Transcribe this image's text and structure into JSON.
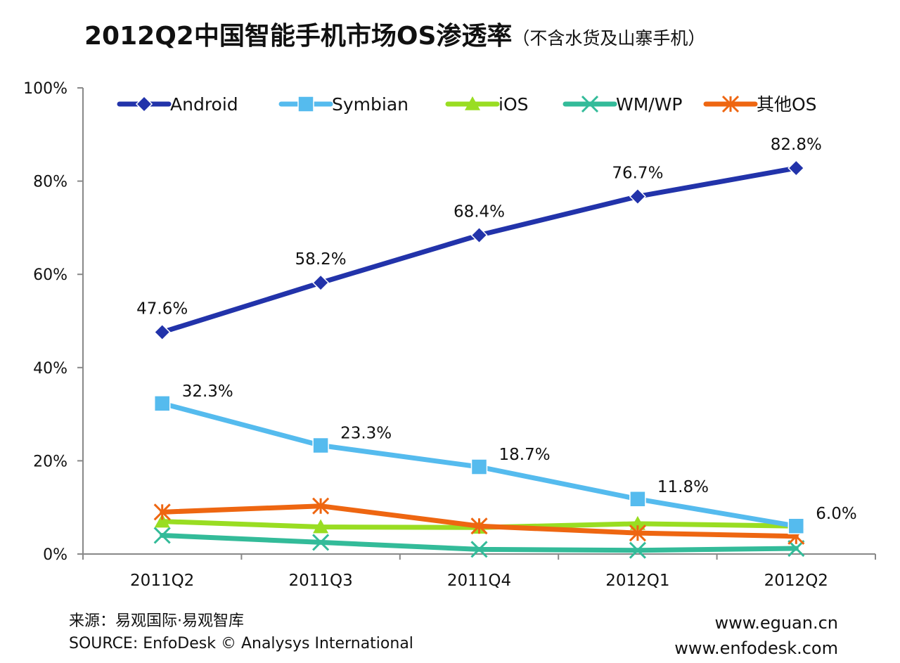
{
  "chart_data": {
    "type": "line",
    "title": "2012Q2中国智能手机市场OS渗透率",
    "subtitle": "（不含水货及山寨手机）",
    "categories": [
      "2011Q2",
      "2011Q3",
      "2011Q4",
      "2012Q1",
      "2012Q2"
    ],
    "y_ticks": [
      "0%",
      "20%",
      "40%",
      "60%",
      "80%",
      "100%"
    ],
    "ylim": [
      0,
      100
    ],
    "legend_position": "top",
    "series": [
      {
        "name": "Android",
        "color": "#2233aa",
        "marker": "diamond",
        "values": [
          47.6,
          58.2,
          68.4,
          76.7,
          82.8
        ],
        "labels": [
          "47.6%",
          "58.2%",
          "68.4%",
          "76.7%",
          "82.8%"
        ]
      },
      {
        "name": "Symbian",
        "color": "#55bbee",
        "marker": "square",
        "values": [
          32.3,
          23.3,
          18.7,
          11.8,
          6.0
        ],
        "labels": [
          "32.3%",
          "23.3%",
          "18.7%",
          "11.8%",
          "6.0%"
        ]
      },
      {
        "name": "iOS",
        "color": "#99dd22",
        "marker": "triangle",
        "values": [
          7.0,
          5.8,
          5.7,
          6.5,
          6.0
        ]
      },
      {
        "name": "WM/WP",
        "color": "#33bb99",
        "marker": "x",
        "values": [
          4.0,
          2.5,
          1.0,
          0.8,
          1.2
        ]
      },
      {
        "name": "其他OS",
        "color": "#ee6611",
        "marker": "star",
        "values": [
          9.0,
          10.3,
          6.0,
          4.5,
          3.8
        ]
      }
    ]
  },
  "footer": {
    "source_cn": "来源：易观国际·易观智库",
    "source_en": "SOURCE: EnfoDesk © Analysys International",
    "url1": "www.eguan.cn",
    "url2": "www.enfodesk.com"
  }
}
